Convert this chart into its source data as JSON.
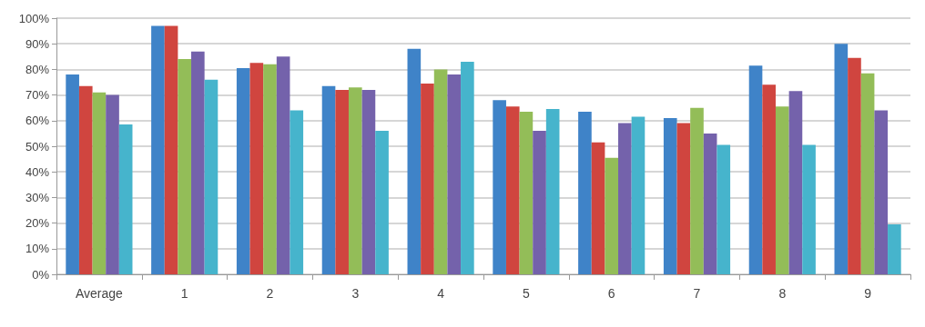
{
  "chart_data": {
    "type": "bar",
    "categories": [
      "Average",
      "1",
      "2",
      "3",
      "4",
      "5",
      "6",
      "7",
      "8",
      "9"
    ],
    "series": [
      {
        "color": "#3f83c8",
        "values": [
          78,
          97,
          80.5,
          73.5,
          88,
          68,
          63.5,
          61,
          81.5,
          90
        ]
      },
      {
        "color": "#d0453f",
        "values": [
          73.5,
          97,
          82.5,
          72,
          74.5,
          65.5,
          51.5,
          59,
          74,
          84.5
        ]
      },
      {
        "color": "#93bd58",
        "values": [
          71,
          84,
          82,
          73,
          80,
          63.5,
          45.5,
          65,
          65.5,
          78.5
        ]
      },
      {
        "color": "#7462ab",
        "values": [
          70,
          87,
          85,
          72,
          78,
          56,
          59,
          55,
          71.5,
          64
        ]
      },
      {
        "color": "#46b4cc",
        "values": [
          58.5,
          76,
          64,
          56,
          83,
          64.5,
          61.5,
          50.5,
          50.5,
          19.5
        ]
      }
    ],
    "ylim": [
      0,
      100
    ],
    "yticks": [
      {
        "value": 0,
        "label": "0%"
      },
      {
        "value": 10,
        "label": "10%"
      },
      {
        "value": 20,
        "label": "20%"
      },
      {
        "value": 30,
        "label": "30%"
      },
      {
        "value": 40,
        "label": "40%"
      },
      {
        "value": 50,
        "label": "50%"
      },
      {
        "value": 60,
        "label": "60%"
      },
      {
        "value": 70,
        "label": "70%"
      },
      {
        "value": 80,
        "label": "80%"
      },
      {
        "value": 90,
        "label": "90%"
      },
      {
        "value": 100,
        "label": "100%"
      }
    ],
    "grid": "y"
  }
}
